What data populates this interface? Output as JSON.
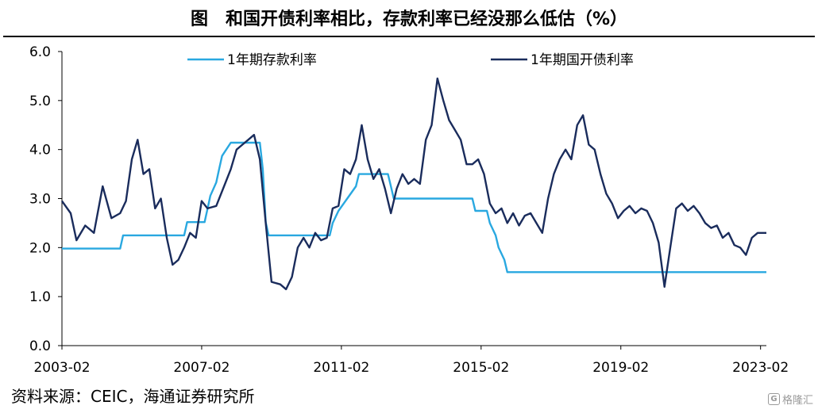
{
  "chart_data": {
    "type": "line",
    "title": "图　和国开债利率相比，存款利率已经没那么低估（%）",
    "xlabel": "",
    "ylabel": "",
    "ylim": [
      0,
      6
    ],
    "yticks": [
      "0.0",
      "1.0",
      "2.0",
      "3.0",
      "4.0",
      "5.0",
      "6.0"
    ],
    "xticks": [
      "2003-02",
      "2007-02",
      "2011-02",
      "2015-02",
      "2019-02",
      "2023-02"
    ],
    "grid": false,
    "legend": "top",
    "series": [
      {
        "name": "1年期存款利率",
        "color": "#29a8e0",
        "points": [
          [
            "2003-02",
            1.98
          ],
          [
            "2004-10",
            1.98
          ],
          [
            "2004-11",
            2.25
          ],
          [
            "2006-08",
            2.25
          ],
          [
            "2006-09",
            2.52
          ],
          [
            "2007-03",
            2.52
          ],
          [
            "2007-04",
            2.79
          ],
          [
            "2007-05",
            3.06
          ],
          [
            "2007-07",
            3.33
          ],
          [
            "2007-08",
            3.6
          ],
          [
            "2007-09",
            3.87
          ],
          [
            "2007-12",
            4.14
          ],
          [
            "2008-10",
            4.14
          ],
          [
            "2008-11",
            3.6
          ],
          [
            "2008-12",
            2.52
          ],
          [
            "2009-01",
            2.25
          ],
          [
            "2010-10",
            2.25
          ],
          [
            "2010-11",
            2.5
          ],
          [
            "2011-01",
            2.75
          ],
          [
            "2011-04",
            3.0
          ],
          [
            "2011-07",
            3.25
          ],
          [
            "2011-08",
            3.5
          ],
          [
            "2012-06",
            3.5
          ],
          [
            "2012-07",
            3.25
          ],
          [
            "2012-08",
            3.0
          ],
          [
            "2014-11",
            3.0
          ],
          [
            "2014-12",
            2.75
          ],
          [
            "2015-04",
            2.75
          ],
          [
            "2015-05",
            2.5
          ],
          [
            "2015-07",
            2.25
          ],
          [
            "2015-08",
            2.0
          ],
          [
            "2015-10",
            1.75
          ],
          [
            "2015-11",
            1.5
          ],
          [
            "2023-04",
            1.5
          ]
        ]
      },
      {
        "name": "1年期国开债利率",
        "color": "#1a2c5c",
        "points": [
          [
            "2003-02",
            2.95
          ],
          [
            "2003-05",
            2.7
          ],
          [
            "2003-07",
            2.15
          ],
          [
            "2003-10",
            2.45
          ],
          [
            "2004-01",
            2.3
          ],
          [
            "2004-04",
            3.25
          ],
          [
            "2004-07",
            2.6
          ],
          [
            "2004-10",
            2.7
          ],
          [
            "2004-12",
            2.95
          ],
          [
            "2005-02",
            3.8
          ],
          [
            "2005-04",
            4.2
          ],
          [
            "2005-06",
            3.5
          ],
          [
            "2005-08",
            3.6
          ],
          [
            "2005-10",
            2.8
          ],
          [
            "2005-12",
            3.0
          ],
          [
            "2006-02",
            2.2
          ],
          [
            "2006-04",
            1.65
          ],
          [
            "2006-06",
            1.75
          ],
          [
            "2006-08",
            2.0
          ],
          [
            "2006-10",
            2.3
          ],
          [
            "2006-12",
            2.2
          ],
          [
            "2007-02",
            2.95
          ],
          [
            "2007-04",
            2.8
          ],
          [
            "2007-07",
            2.85
          ],
          [
            "2007-10",
            3.3
          ],
          [
            "2007-12",
            3.6
          ],
          [
            "2008-02",
            4.0
          ],
          [
            "2008-04",
            4.1
          ],
          [
            "2008-06",
            4.2
          ],
          [
            "2008-08",
            4.3
          ],
          [
            "2008-10",
            3.8
          ],
          [
            "2008-12",
            2.5
          ],
          [
            "2009-02",
            1.3
          ],
          [
            "2009-05",
            1.25
          ],
          [
            "2009-07",
            1.15
          ],
          [
            "2009-09",
            1.4
          ],
          [
            "2009-11",
            2.0
          ],
          [
            "2010-01",
            2.2
          ],
          [
            "2010-03",
            2.0
          ],
          [
            "2010-05",
            2.3
          ],
          [
            "2010-07",
            2.15
          ],
          [
            "2010-09",
            2.2
          ],
          [
            "2010-11",
            2.8
          ],
          [
            "2011-01",
            2.85
          ],
          [
            "2011-03",
            3.6
          ],
          [
            "2011-05",
            3.5
          ],
          [
            "2011-07",
            3.8
          ],
          [
            "2011-09",
            4.5
          ],
          [
            "2011-11",
            3.8
          ],
          [
            "2012-01",
            3.4
          ],
          [
            "2012-03",
            3.6
          ],
          [
            "2012-05",
            3.2
          ],
          [
            "2012-07",
            2.7
          ],
          [
            "2012-09",
            3.2
          ],
          [
            "2012-11",
            3.5
          ],
          [
            "2013-01",
            3.3
          ],
          [
            "2013-03",
            3.4
          ],
          [
            "2013-05",
            3.3
          ],
          [
            "2013-07",
            4.2
          ],
          [
            "2013-09",
            4.5
          ],
          [
            "2013-11",
            5.45
          ],
          [
            "2014-01",
            5.0
          ],
          [
            "2014-03",
            4.6
          ],
          [
            "2014-05",
            4.4
          ],
          [
            "2014-07",
            4.2
          ],
          [
            "2014-09",
            3.7
          ],
          [
            "2014-11",
            3.7
          ],
          [
            "2015-01",
            3.8
          ],
          [
            "2015-03",
            3.5
          ],
          [
            "2015-05",
            2.9
          ],
          [
            "2015-07",
            2.7
          ],
          [
            "2015-09",
            2.8
          ],
          [
            "2015-11",
            2.5
          ],
          [
            "2016-01",
            2.7
          ],
          [
            "2016-03",
            2.45
          ],
          [
            "2016-05",
            2.65
          ],
          [
            "2016-07",
            2.7
          ],
          [
            "2016-09",
            2.5
          ],
          [
            "2016-11",
            2.3
          ],
          [
            "2017-01",
            3.0
          ],
          [
            "2017-03",
            3.5
          ],
          [
            "2017-05",
            3.8
          ],
          [
            "2017-07",
            4.0
          ],
          [
            "2017-09",
            3.8
          ],
          [
            "2017-11",
            4.5
          ],
          [
            "2018-01",
            4.7
          ],
          [
            "2018-03",
            4.1
          ],
          [
            "2018-05",
            4.0
          ],
          [
            "2018-07",
            3.5
          ],
          [
            "2018-09",
            3.1
          ],
          [
            "2018-11",
            2.9
          ],
          [
            "2019-01",
            2.6
          ],
          [
            "2019-03",
            2.75
          ],
          [
            "2019-05",
            2.85
          ],
          [
            "2019-07",
            2.7
          ],
          [
            "2019-09",
            2.8
          ],
          [
            "2019-11",
            2.75
          ],
          [
            "2020-01",
            2.5
          ],
          [
            "2020-03",
            2.1
          ],
          [
            "2020-05",
            1.2
          ],
          [
            "2020-07",
            2.0
          ],
          [
            "2020-09",
            2.8
          ],
          [
            "2020-11",
            2.9
          ],
          [
            "2021-01",
            2.75
          ],
          [
            "2021-03",
            2.85
          ],
          [
            "2021-05",
            2.7
          ],
          [
            "2021-07",
            2.5
          ],
          [
            "2021-09",
            2.4
          ],
          [
            "2021-11",
            2.45
          ],
          [
            "2022-01",
            2.2
          ],
          [
            "2022-03",
            2.3
          ],
          [
            "2022-05",
            2.05
          ],
          [
            "2022-07",
            2.0
          ],
          [
            "2022-09",
            1.85
          ],
          [
            "2022-11",
            2.2
          ],
          [
            "2023-01",
            2.3
          ],
          [
            "2023-04",
            2.3
          ]
        ]
      }
    ]
  },
  "source": "资料来源：CEIC，海通证券研究所",
  "watermark": "格隆汇"
}
